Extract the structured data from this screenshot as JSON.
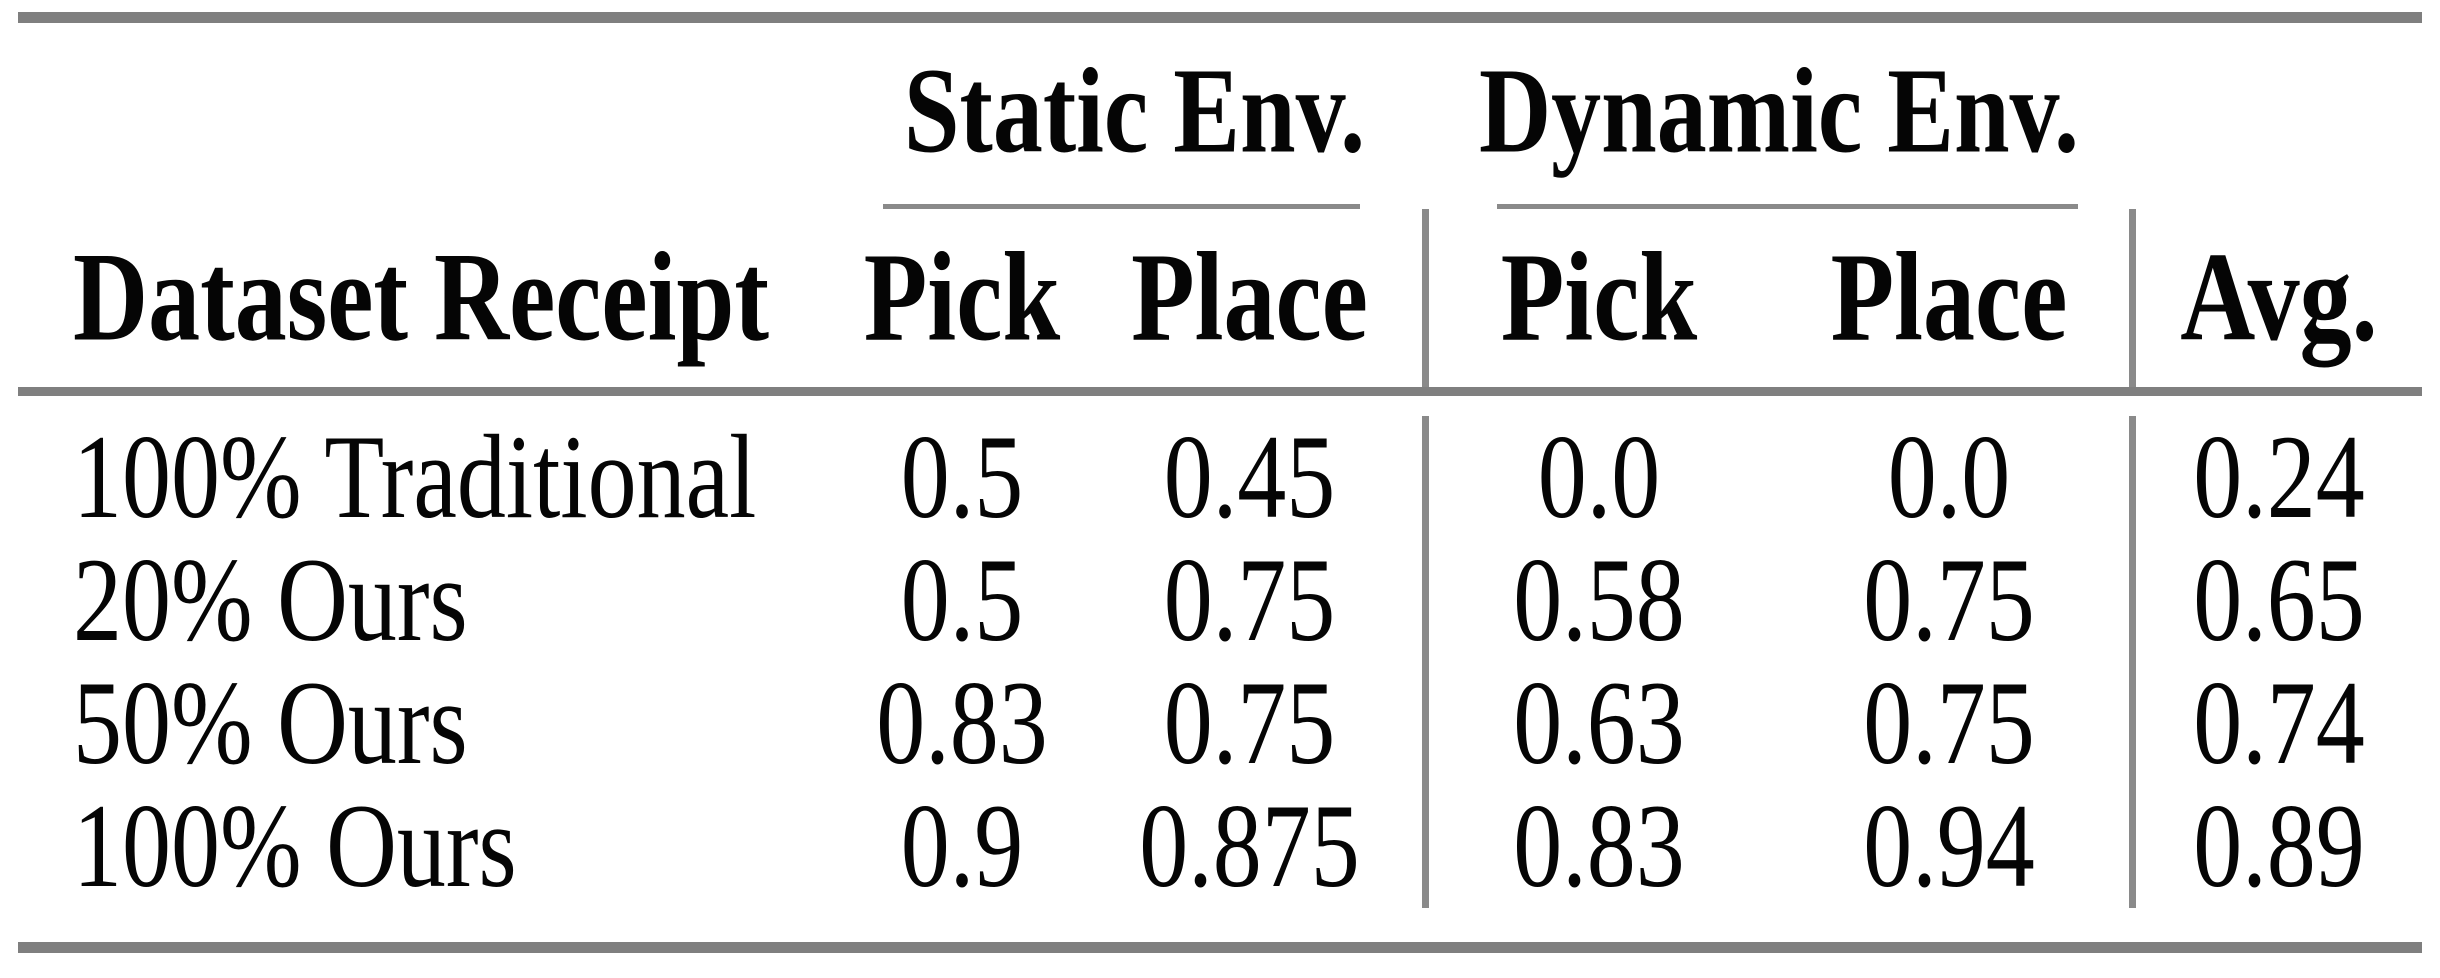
{
  "table": {
    "groups": [
      {
        "label": "Static Env."
      },
      {
        "label": "Dynamic Env."
      }
    ],
    "columns": [
      "Dataset Receipt",
      "Pick",
      "Place",
      "Pick",
      "Place",
      "Avg."
    ],
    "rows": [
      {
        "cells": [
          "100% Traditional",
          "0.5",
          "0.45",
          "0.0",
          "0.0",
          "0.24"
        ]
      },
      {
        "cells": [
          "20% Ours",
          "0.5",
          "0.75",
          "0.58",
          "0.75",
          "0.65"
        ]
      },
      {
        "cells": [
          "50% Ours",
          "0.83",
          "0.75",
          "0.63",
          "0.75",
          "0.74"
        ]
      },
      {
        "cells": [
          "100% Ours",
          "0.9",
          "0.875",
          "0.83",
          "0.94",
          "0.89"
        ]
      }
    ],
    "colors": {
      "rule_thick": "#7f7f7f",
      "rule_thin": "#8a8a8a",
      "text": "#050505",
      "background": "#ffffff"
    }
  },
  "chart_data": {
    "type": "table",
    "column_groups": [
      {
        "label": "Static Env.",
        "columns": [
          "Pick",
          "Place"
        ]
      },
      {
        "label": "Dynamic Env.",
        "columns": [
          "Pick",
          "Place"
        ]
      }
    ],
    "columns": [
      "Dataset Receipt",
      "Static Env. Pick",
      "Static Env. Place",
      "Dynamic Env. Pick",
      "Dynamic Env. Place",
      "Avg."
    ],
    "rows": [
      [
        "100% Traditional",
        0.5,
        0.45,
        0.0,
        0.0,
        0.24
      ],
      [
        "20% Ours",
        0.5,
        0.75,
        0.58,
        0.75,
        0.65
      ],
      [
        "50% Ours",
        0.83,
        0.75,
        0.63,
        0.75,
        0.74
      ],
      [
        "100% Ours",
        0.9,
        0.875,
        0.83,
        0.94,
        0.89
      ]
    ]
  }
}
